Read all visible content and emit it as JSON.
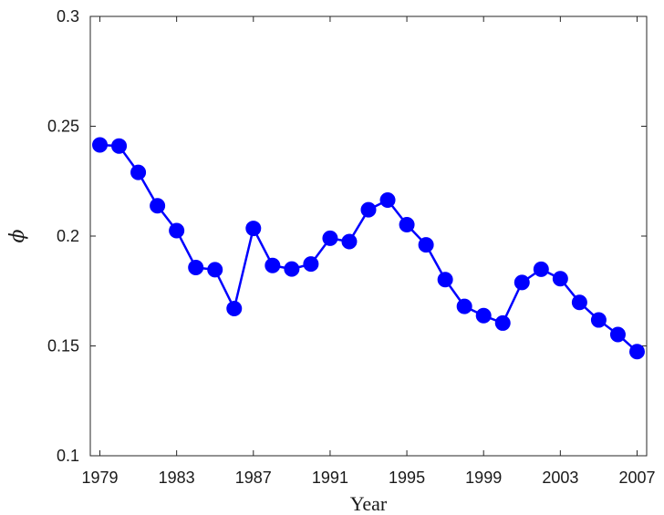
{
  "chart_data": {
    "type": "line",
    "xlabel": "Year",
    "ylabel": "ϕ",
    "xlim": [
      1978.5,
      2007.5
    ],
    "ylim": [
      0.1,
      0.3
    ],
    "x_ticks": [
      1979,
      1983,
      1987,
      1991,
      1995,
      1999,
      2003,
      2007
    ],
    "x_tick_labels": [
      "1979",
      "1983",
      "1987",
      "1991",
      "1995",
      "1999",
      "2003",
      "2007"
    ],
    "y_ticks": [
      0.1,
      0.15,
      0.2,
      0.25,
      0.3
    ],
    "y_tick_labels": [
      "0.1",
      "0.15",
      "0.2",
      "0.25",
      "0.3"
    ],
    "grid": false,
    "series": [
      {
        "color": "#0000ff",
        "marker": "circle",
        "x": [
          1979,
          1980,
          1981,
          1982,
          1983,
          1984,
          1985,
          1986,
          1987,
          1988,
          1989,
          1990,
          1991,
          1992,
          1993,
          1994,
          1995,
          1996,
          1997,
          1998,
          1999,
          2000,
          2001,
          2002,
          2003,
          2004,
          2005,
          2006,
          2007
        ],
        "values": [
          0.2415,
          0.241,
          0.229,
          0.2138,
          0.2025,
          0.1857,
          0.1847,
          0.167,
          0.2035,
          0.1866,
          0.185,
          0.1873,
          0.199,
          0.1975,
          0.212,
          0.2164,
          0.2052,
          0.196,
          0.1802,
          0.168,
          0.1638,
          0.1604,
          0.1789,
          0.1849,
          0.1806,
          0.1698,
          0.1618,
          0.1552,
          0.1474
        ]
      }
    ]
  }
}
